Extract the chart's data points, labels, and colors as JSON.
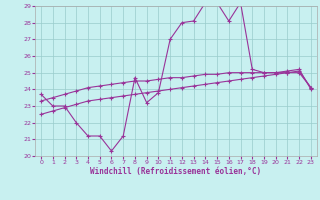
{
  "xlabel": "Windchill (Refroidissement éolien,°C)",
  "x": [
    0,
    1,
    2,
    3,
    4,
    5,
    6,
    7,
    8,
    9,
    10,
    11,
    12,
    13,
    14,
    15,
    16,
    17,
    18,
    19,
    20,
    21,
    22,
    23
  ],
  "line1": [
    23.7,
    23.0,
    23.0,
    22.0,
    21.2,
    21.2,
    20.3,
    21.2,
    24.7,
    23.2,
    23.8,
    27.0,
    28.0,
    28.1,
    29.2,
    29.2,
    28.1,
    29.2,
    25.2,
    25.0,
    25.0,
    25.1,
    25.2,
    24.0
  ],
  "line2": [
    23.3,
    23.5,
    23.7,
    23.9,
    24.1,
    24.2,
    24.3,
    24.4,
    24.5,
    24.5,
    24.6,
    24.7,
    24.7,
    24.8,
    24.9,
    24.9,
    25.0,
    25.0,
    25.0,
    25.0,
    25.0,
    25.0,
    25.0,
    24.1
  ],
  "line3": [
    22.5,
    22.7,
    22.9,
    23.1,
    23.3,
    23.4,
    23.5,
    23.6,
    23.7,
    23.8,
    23.9,
    24.0,
    24.1,
    24.2,
    24.3,
    24.4,
    24.5,
    24.6,
    24.7,
    24.8,
    24.9,
    25.0,
    25.1,
    24.1
  ],
  "bg_color": "#c8f0f0",
  "line_color": "#993399",
  "grid_color": "#99cccc",
  "ylim": [
    20,
    29
  ],
  "xlim": [
    0,
    23
  ]
}
